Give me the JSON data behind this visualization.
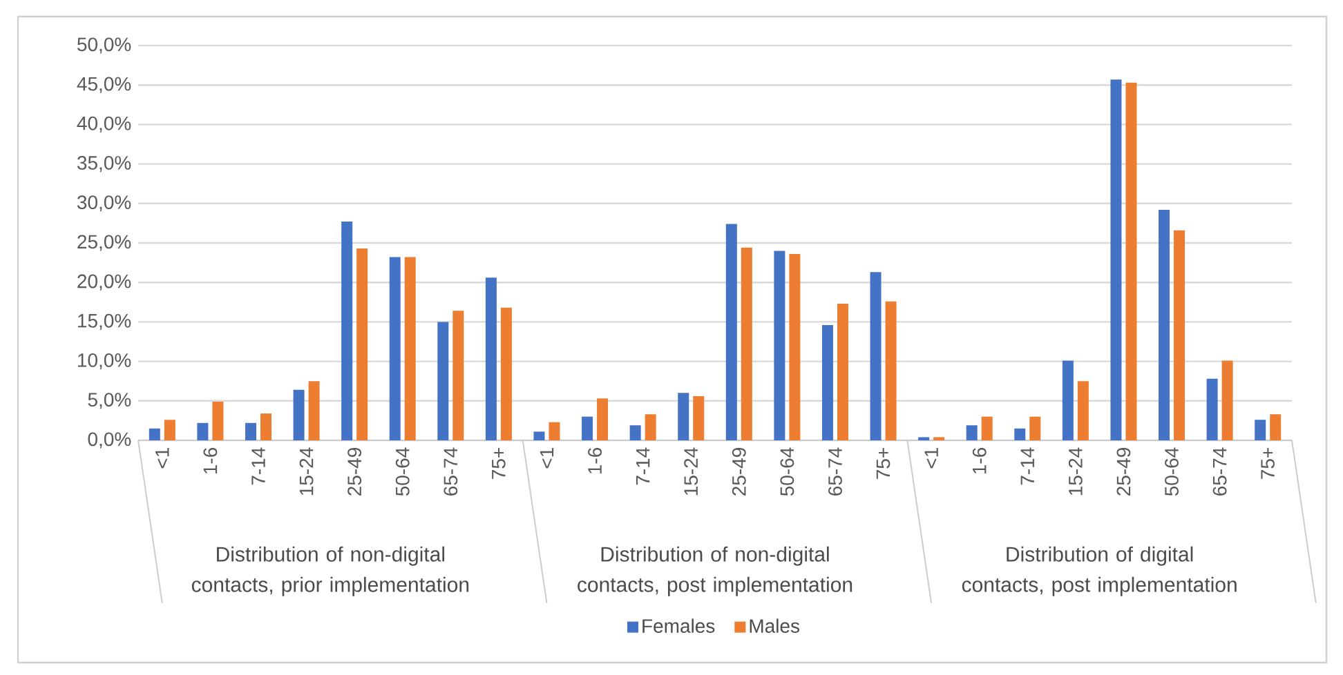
{
  "chart_data": {
    "type": "bar",
    "categories": [
      "<1",
      "1-6",
      "7-14",
      "15-24",
      "25-49",
      "50-64",
      "65-74",
      "75+",
      "<1",
      "1-6",
      "7-14",
      "15-24",
      "25-49",
      "50-64",
      "65-74",
      "75+",
      "<1",
      "1-6",
      "7-14",
      "15-24",
      "25-49",
      "50-64",
      "65-74",
      "75+"
    ],
    "series": [
      {
        "name": "Females",
        "color": "#4472c4",
        "values": [
          1.5,
          2.2,
          2.2,
          6.4,
          27.7,
          23.2,
          15.0,
          20.6,
          1.1,
          3.0,
          1.9,
          6.0,
          27.4,
          24.0,
          14.6,
          21.3,
          0.4,
          1.9,
          1.5,
          10.1,
          45.7,
          29.2,
          7.8,
          2.6
        ]
      },
      {
        "name": "Males",
        "color": "#ed7d31",
        "values": [
          2.6,
          4.9,
          3.4,
          7.5,
          24.3,
          23.2,
          16.4,
          16.8,
          2.3,
          5.3,
          3.3,
          5.6,
          24.4,
          23.6,
          17.3,
          17.6,
          0.4,
          3.0,
          3.0,
          7.5,
          45.3,
          26.6,
          10.1,
          3.3
        ]
      }
    ],
    "annotations": [
      "Distribution of non-digital contacts, prior implementation",
      "Distribution of non-digital contacts, post implementation",
      "Distribution of digital contacts, post implementation"
    ],
    "ylim": [
      0,
      50
    ],
    "yticks": [
      {
        "value": 0,
        "label": "0,0%"
      },
      {
        "value": 5,
        "label": "5,0%"
      },
      {
        "value": 10,
        "label": "10,0%"
      },
      {
        "value": 15,
        "label": "15,0%"
      },
      {
        "value": 20,
        "label": "20,0%"
      },
      {
        "value": 25,
        "label": "25,0%"
      },
      {
        "value": 30,
        "label": "30,0%"
      },
      {
        "value": 35,
        "label": "35,0%"
      },
      {
        "value": 40,
        "label": "40,0%"
      },
      {
        "value": 45,
        "label": "45,0%"
      },
      {
        "value": 50,
        "label": "50,0%"
      }
    ],
    "grid": "y",
    "legend": "bottom"
  }
}
